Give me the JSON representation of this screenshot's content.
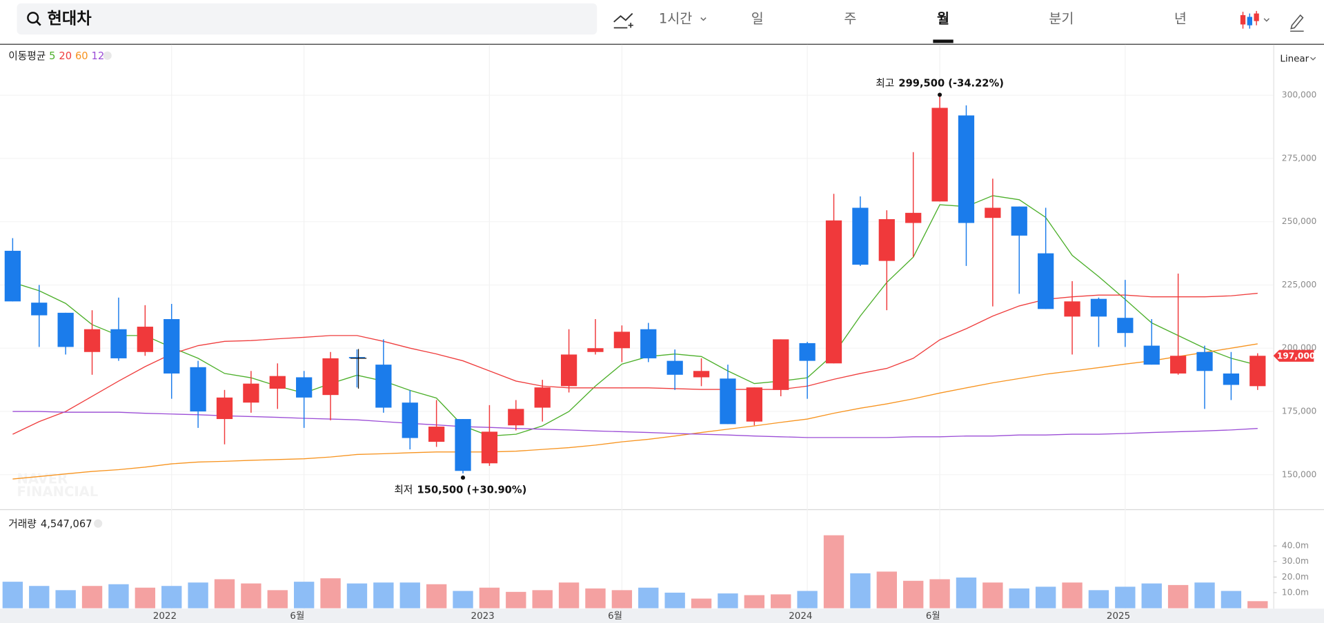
{
  "toolbar": {
    "search": "현대차",
    "intervals": [
      "1시간",
      "일",
      "주",
      "월",
      "분기",
      "년"
    ],
    "selected": "월"
  },
  "scale_label": "Linear",
  "watermark": [
    "NAVER",
    "FINANCIAL"
  ],
  "chart_data": {
    "type": "candlestick",
    "categories": [
      null,
      null,
      null,
      null,
      null,
      null,
      "2022",
      null,
      null,
      null,
      null,
      "6월",
      null,
      null,
      null,
      null,
      null,
      null,
      "2023",
      null,
      null,
      null,
      null,
      "6월",
      null,
      null,
      null,
      null,
      null,
      null,
      "2024",
      null,
      null,
      null,
      null,
      "6월",
      null,
      null,
      null,
      null,
      null,
      null,
      "2025",
      null,
      null,
      null,
      null,
      null
    ],
    "open": [
      238500,
      218000,
      214000,
      198500,
      207500,
      198500,
      211500,
      192500,
      172000,
      178500,
      184000,
      188500,
      181500,
      196500,
      193500,
      178500,
      163000,
      172000,
      154500,
      169500,
      176500,
      185000,
      198500,
      200000,
      207500,
      195000,
      188500,
      188000,
      171000,
      183500,
      202000,
      194000,
      255500,
      234500,
      249500,
      258000,
      292000,
      251500,
      256000,
      237500,
      212500,
      219500,
      212000,
      201000,
      190000,
      198500,
      190000,
      185000
    ],
    "high": [
      243500,
      225000,
      214000,
      215000,
      220000,
      217000,
      217500,
      195000,
      183500,
      191000,
      194000,
      191000,
      198500,
      199500,
      203500,
      183500,
      179500,
      172000,
      177500,
      179500,
      187500,
      207500,
      211500,
      209000,
      210000,
      199500,
      196000,
      193500,
      184500,
      203500,
      202500,
      261000,
      260000,
      254500,
      277500,
      299500,
      296000,
      267000,
      256000,
      255500,
      226500,
      220000,
      227000,
      211500,
      229500,
      201000,
      198500,
      198000
    ],
    "low": [
      218500,
      200500,
      197500,
      189500,
      195000,
      197000,
      180000,
      168500,
      162000,
      174500,
      176000,
      168500,
      171500,
      184500,
      174500,
      160000,
      161000,
      150500,
      153500,
      167500,
      171000,
      182500,
      197500,
      194500,
      194500,
      183500,
      185000,
      170000,
      169500,
      181000,
      180000,
      194000,
      232500,
      215000,
      236000,
      258000,
      232500,
      216500,
      221500,
      215500,
      197500,
      200500,
      200500,
      193500,
      189500,
      176000,
      179500,
      183500
    ],
    "close": [
      218500,
      213000,
      200500,
      207500,
      196000,
      208500,
      190000,
      175000,
      180500,
      186000,
      189000,
      180500,
      196000,
      196000,
      176500,
      164500,
      169000,
      151500,
      167000,
      176000,
      184500,
      197500,
      200000,
      206500,
      196000,
      189500,
      191000,
      170000,
      184500,
      203500,
      195000,
      250500,
      233000,
      251000,
      253500,
      295000,
      249500,
      255500,
      244500,
      215500,
      218500,
      212500,
      206000,
      193500,
      197000,
      191000,
      185500,
      197000
    ],
    "up_color": "#f0393b",
    "down_color": "#1b7ceb",
    "ylim": [
      136700,
      319300
    ],
    "yticks": [
      {
        "value": 150000,
        "label": "150,000"
      },
      {
        "value": 175000,
        "label": "175,000"
      },
      {
        "value": 200000,
        "label": "200,000"
      },
      {
        "value": 225000,
        "label": "225,000"
      },
      {
        "value": 250000,
        "label": "250,000"
      },
      {
        "value": 275000,
        "label": "275,000"
      },
      {
        "value": 300000,
        "label": "300,000"
      }
    ],
    "grid": true,
    "last_price_label": "197,000",
    "moving_averages": {
      "label": "이동평균",
      "series": [
        {
          "name": "5",
          "color": "#4caf2a",
          "values": [
            226000,
            222700,
            217700,
            209300,
            205000,
            205000,
            200300,
            196000,
            190000,
            188300,
            185000,
            182300,
            186000,
            189300,
            187000,
            183300,
            180300,
            169300,
            165300,
            166000,
            169300,
            175000,
            185000,
            193700,
            196700,
            197700,
            196700,
            191000,
            186000,
            187000,
            188300,
            197700,
            212700,
            226000,
            236000,
            256700,
            256000,
            260300,
            258700,
            251700,
            236700,
            228300,
            219300,
            210000,
            205000,
            200000,
            196000,
            193300
          ]
        },
        {
          "name": "20",
          "color": "#ef3d3d",
          "values": [
            166000,
            171000,
            175000,
            181000,
            187000,
            192700,
            197700,
            201000,
            202700,
            203000,
            203700,
            204300,
            205000,
            205000,
            202700,
            200000,
            197700,
            195000,
            191000,
            187000,
            185000,
            184300,
            184300,
            184300,
            184300,
            184000,
            183700,
            183700,
            183700,
            183700,
            185000,
            187700,
            190000,
            192000,
            196000,
            203300,
            207700,
            212700,
            216700,
            219300,
            220300,
            221000,
            221000,
            220300,
            220300,
            220300,
            220700,
            221700
          ]
        },
        {
          "name": "60",
          "color": "#f7931e",
          "values": [
            148300,
            149300,
            150300,
            151300,
            152000,
            153000,
            154300,
            155000,
            155300,
            155700,
            156000,
            156300,
            157000,
            158000,
            158300,
            158700,
            159000,
            159000,
            159000,
            159300,
            160000,
            160700,
            161700,
            163000,
            164000,
            165300,
            166700,
            168000,
            169300,
            170700,
            172000,
            174300,
            176300,
            178000,
            180000,
            182300,
            184300,
            186300,
            188000,
            189700,
            191000,
            192300,
            193700,
            195000,
            196700,
            198300,
            200000,
            201700
          ]
        },
        {
          "name": "120",
          "color": "#9b4dd6",
          "values": [
            175000,
            175000,
            174700,
            174700,
            174700,
            174300,
            174000,
            173700,
            173300,
            173000,
            172700,
            172300,
            172000,
            171700,
            171000,
            170300,
            169700,
            169000,
            168700,
            168300,
            168000,
            167700,
            167300,
            167000,
            166700,
            166300,
            166000,
            165700,
            165300,
            165000,
            164700,
            164700,
            164700,
            164700,
            165000,
            165000,
            165300,
            165300,
            165700,
            165700,
            166000,
            166000,
            166300,
            166700,
            167000,
            167300,
            167700,
            168300
          ]
        }
      ]
    },
    "high_annotation": {
      "label": "최고",
      "text": "299,500 (-34.22%)"
    },
    "low_annotation": {
      "label": "최저",
      "text": "150,500 (+30.90%)"
    },
    "volume": {
      "name": "거래량",
      "current_label": "4,547,067",
      "values": [
        17000000,
        14300000,
        11600000,
        14300000,
        15400000,
        13200000,
        14300000,
        16500000,
        18600000,
        15900000,
        11600000,
        17000000,
        19200000,
        15900000,
        16500000,
        16500000,
        15400000,
        11100000,
        13200000,
        10500000,
        11600000,
        16500000,
        12700000,
        11600000,
        13200000,
        10000000,
        6200000,
        9500000,
        8400000,
        8900000,
        11100000,
        46800000,
        22400000,
        23500000,
        17600000,
        18600000,
        19700000,
        16500000,
        12700000,
        13800000,
        16500000,
        11600000,
        13800000,
        15900000,
        14900000,
        16500000,
        11100000,
        4547067
      ],
      "up_color": "#f4a1a1",
      "down_color": "#8dbdf6",
      "ylim": [
        0,
        61900000
      ],
      "yticks": [
        {
          "value": 10000000,
          "label": "10.0m"
        },
        {
          "value": 20000000,
          "label": "20.0m"
        },
        {
          "value": 30000000,
          "label": "30.0m"
        },
        {
          "value": 40000000,
          "label": "40.0m"
        }
      ]
    }
  }
}
